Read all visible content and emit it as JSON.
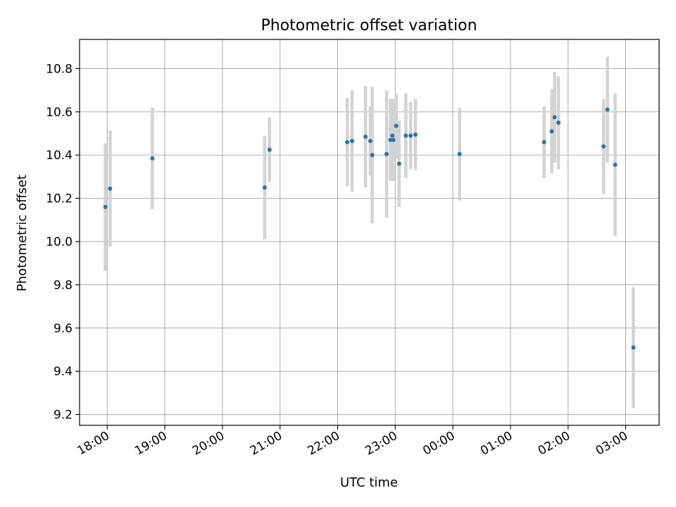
{
  "chart_data": {
    "type": "scatter",
    "title": "Photometric offset variation",
    "xlabel": "UTC time",
    "ylabel": "Photometric offset",
    "x_ticks": [
      "18:00",
      "19:00",
      "20:00",
      "21:00",
      "22:00",
      "23:00",
      "00:00",
      "01:00",
      "02:00",
      "03:00"
    ],
    "x_tick_hours": [
      0,
      1,
      2,
      3,
      4,
      5,
      6,
      7,
      8,
      9
    ],
    "x_range_hours": [
      -0.48,
      9.58
    ],
    "x_axis_start_label": "18:00",
    "y_ticks": [
      "9.2",
      "9.4",
      "9.6",
      "9.8",
      "10.0",
      "10.2",
      "10.4",
      "10.6",
      "10.8"
    ],
    "ylim": [
      9.15,
      10.935
    ],
    "grid": true,
    "colors": {
      "point": "#1f77b4",
      "error_bar": "#d3d3d3",
      "grid": "#b0b0b0"
    },
    "series": [
      {
        "points": [
          {
            "t": "17:58",
            "y": 10.16,
            "err": 0.295
          },
          {
            "t": "18:03",
            "y": 10.245,
            "err": 0.268
          },
          {
            "t": "18:47",
            "y": 10.385,
            "err": 0.235
          },
          {
            "t": "20:44",
            "y": 10.25,
            "err": 0.24
          },
          {
            "t": "20:49",
            "y": 10.425,
            "err": 0.15
          },
          {
            "t": "22:10",
            "y": 10.46,
            "err": 0.205
          },
          {
            "t": "22:15",
            "y": 10.465,
            "err": 0.235
          },
          {
            "t": "22:29",
            "y": 10.485,
            "err": 0.235
          },
          {
            "t": "22:34",
            "y": 10.465,
            "err": 0.16
          },
          {
            "t": "22:36",
            "y": 10.4,
            "err": 0.315
          },
          {
            "t": "22:51",
            "y": 10.405,
            "err": 0.295
          },
          {
            "t": "22:55",
            "y": 10.47,
            "err": 0.19
          },
          {
            "t": "22:57",
            "y": 10.49,
            "err": 0.17
          },
          {
            "t": "22:58",
            "y": 10.47,
            "err": 0.19
          },
          {
            "t": "23:01",
            "y": 10.535,
            "err": 0.15
          },
          {
            "t": "23:04",
            "y": 10.36,
            "err": 0.2
          },
          {
            "t": "23:11",
            "y": 10.49,
            "err": 0.195
          },
          {
            "t": "23:16",
            "y": 10.49,
            "err": 0.155
          },
          {
            "t": "23:21",
            "y": 10.495,
            "err": 0.165
          },
          {
            "t": "00:07",
            "y": 10.405,
            "err": 0.215
          },
          {
            "t": "01:35",
            "y": 10.46,
            "err": 0.165
          },
          {
            "t": "01:43",
            "y": 10.51,
            "err": 0.195
          },
          {
            "t": "01:46",
            "y": 10.575,
            "err": 0.21
          },
          {
            "t": "01:50",
            "y": 10.55,
            "err": 0.215
          },
          {
            "t": "02:37",
            "y": 10.44,
            "err": 0.22
          },
          {
            "t": "02:41",
            "y": 10.61,
            "err": 0.245
          },
          {
            "t": "02:49",
            "y": 10.355,
            "err": 0.33
          },
          {
            "t": "03:08",
            "y": 9.51,
            "err": 0.28
          }
        ]
      }
    ]
  }
}
